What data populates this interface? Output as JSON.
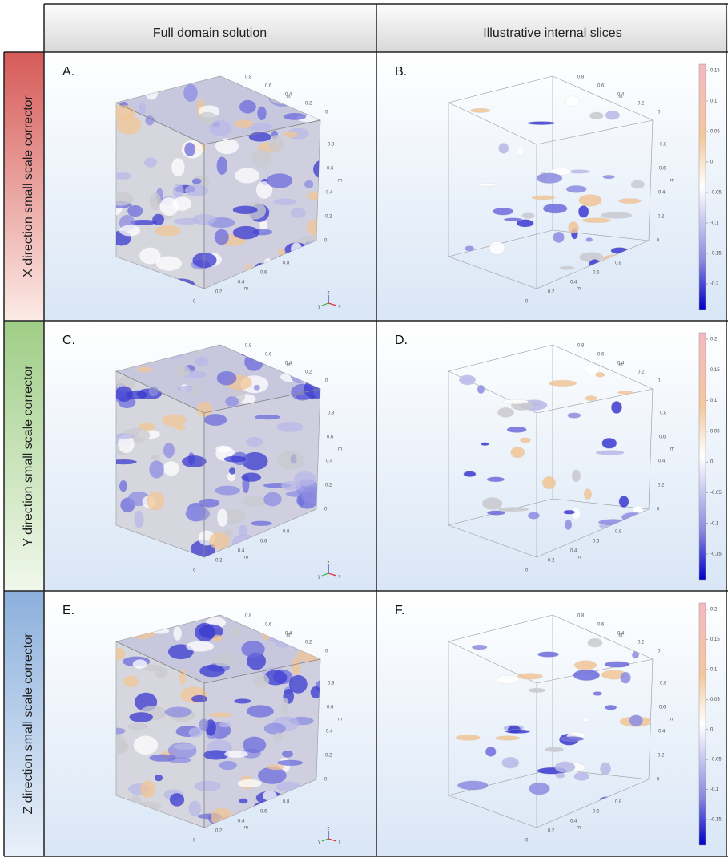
{
  "header": {
    "columns": [
      "Full domain solution",
      "Illustrative internal slices"
    ]
  },
  "rows": [
    {
      "label": "X direction small scale corrector",
      "panels": [
        {
          "letter": "A."
        },
        {
          "letter": "B.",
          "colorbar_ticks": [
            0.15,
            0.1,
            0.05,
            0,
            -0.05,
            -0.1,
            -0.15,
            -0.2
          ]
        }
      ]
    },
    {
      "label": "Y direction small scale corrector",
      "panels": [
        {
          "letter": "C."
        },
        {
          "letter": "D.",
          "colorbar_ticks": [
            0.2,
            0.15,
            0.1,
            0.05,
            0,
            -0.05,
            -0.1,
            -0.15
          ]
        }
      ]
    },
    {
      "label": "Z direction small scale corrector",
      "panels": [
        {
          "letter": "E."
        },
        {
          "letter": "F.",
          "colorbar_ticks": [
            0.2,
            0.15,
            0.1,
            0.05,
            0,
            -0.05,
            -0.1,
            -0.15
          ]
        }
      ]
    }
  ],
  "axis": {
    "ticks": [
      0,
      0.2,
      0.4,
      0.6,
      0.8
    ],
    "unit": "m",
    "triad_labels": [
      "x",
      "y",
      "z"
    ]
  }
}
